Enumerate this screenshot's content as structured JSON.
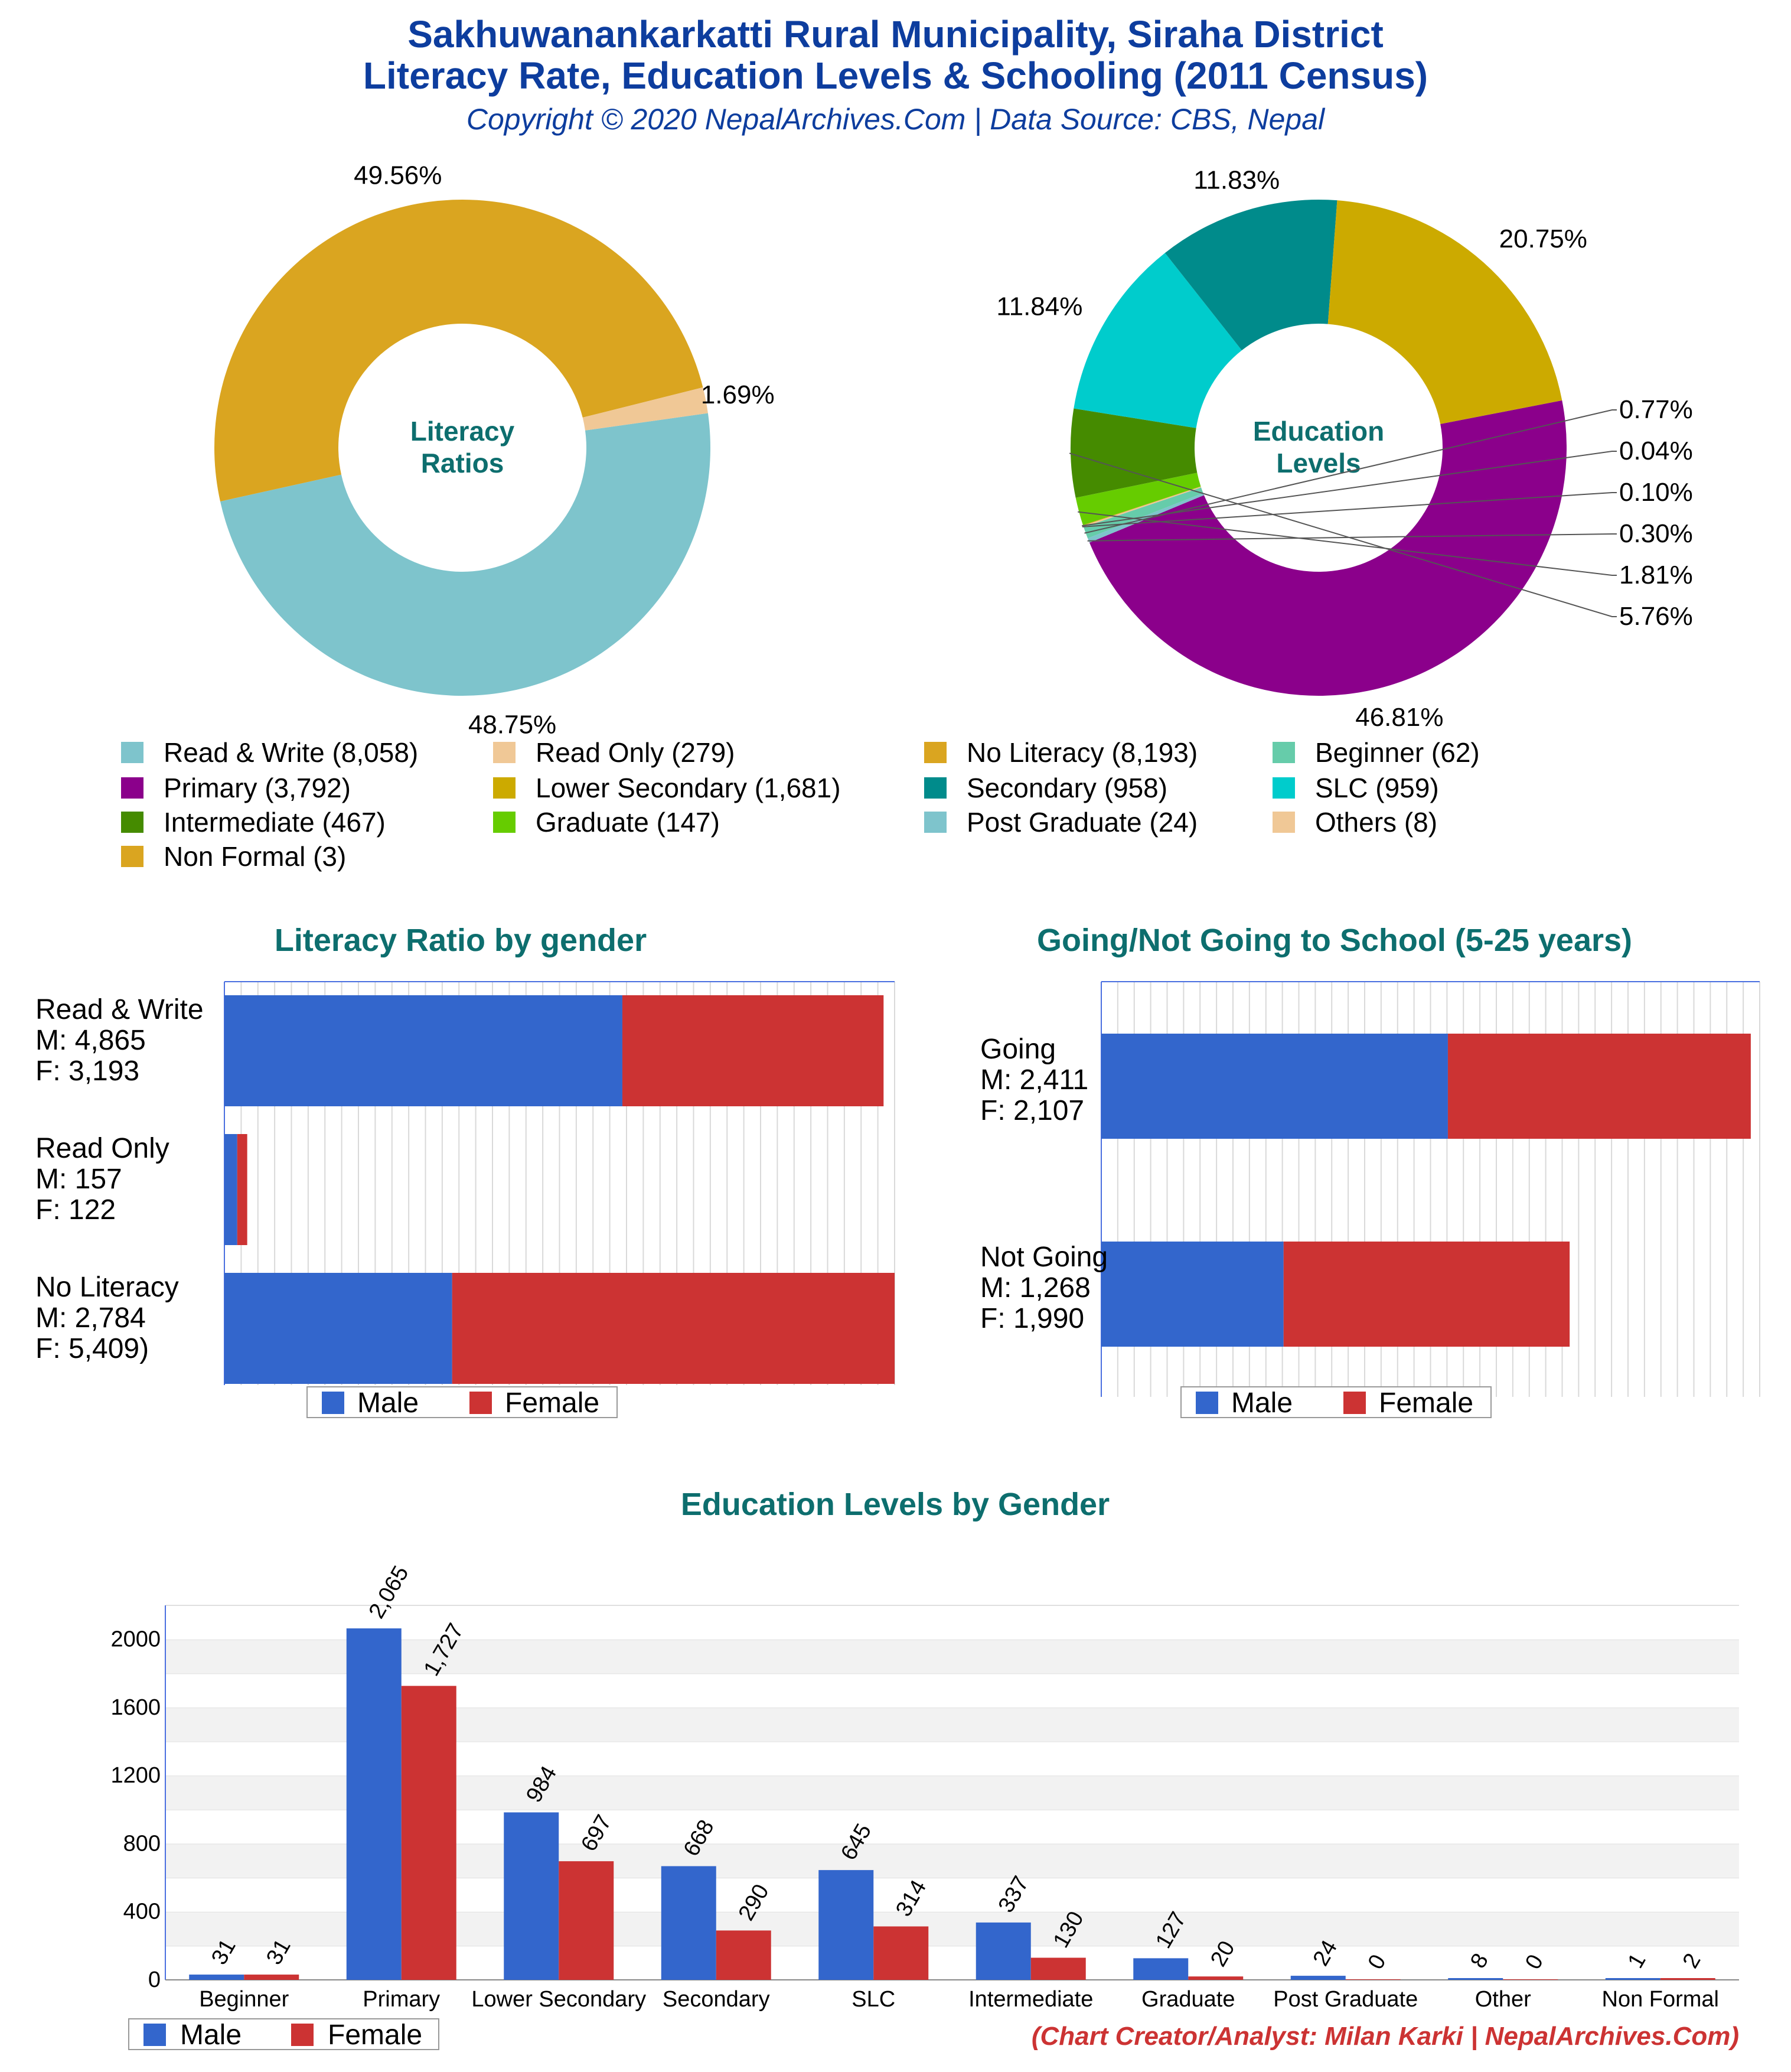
{
  "header": {
    "title_line1": "Sakhuwanankarkatti Rural Municipality, Siraha District",
    "title_line2": "Literacy Rate, Education Levels & Schooling (2011 Census)",
    "copyright": "Copyright © 2020 NepalArchives.Com | Data Source: CBS, Nepal"
  },
  "footer": {
    "credit": "(Chart Creator/Analyst: Milan Karki | NepalArchives.Com)"
  },
  "colors": {
    "male": "#3366cc",
    "female": "#cc3333",
    "section_title": "#0d6e6e",
    "header": "#0d3d9e",
    "credit": "#cc3333"
  },
  "legend": {
    "items": [
      {
        "label": "Read & Write (8,058)",
        "color": "#7ec4cc"
      },
      {
        "label": "Read Only (279)",
        "color": "#f0c896"
      },
      {
        "label": "No Literacy (8,193)",
        "color": "#daa520"
      },
      {
        "label": "Beginner (62)",
        "color": "#66ccaa"
      },
      {
        "label": "Primary (3,792)",
        "color": "#8b008b"
      },
      {
        "label": "Lower Secondary (1,681)",
        "color": "#ccaa00"
      },
      {
        "label": "Secondary (958)",
        "color": "#008b8b"
      },
      {
        "label": "SLC (959)",
        "color": "#00cccc"
      },
      {
        "label": "Intermediate (467)",
        "color": "#458b00"
      },
      {
        "label": "Graduate (147)",
        "color": "#66cc00"
      },
      {
        "label": "Post Graduate (24)",
        "color": "#7ec4cc"
      },
      {
        "label": "Others (8)",
        "color": "#f0c896"
      },
      {
        "label": "Non Formal (3)",
        "color": "#daa520"
      }
    ]
  },
  "chart_data": [
    {
      "type": "pie",
      "center_label_line1": "Literacy",
      "center_label_line2": "Ratios",
      "slices": [
        {
          "name": "Read & Write",
          "value": 8058,
          "percent": "48.75%",
          "color": "#7ec4cc"
        },
        {
          "name": "No Literacy",
          "value": 8193,
          "percent": "49.56%",
          "color": "#daa520"
        },
        {
          "name": "Read Only",
          "value": 279,
          "percent": "1.69%",
          "color": "#f0c896"
        }
      ]
    },
    {
      "type": "pie",
      "center_label_line1": "Education",
      "center_label_line2": "Levels",
      "slices": [
        {
          "name": "Primary",
          "value": 3792,
          "percent": "46.81%",
          "color": "#8b008b"
        },
        {
          "name": "Post Graduate",
          "value": 24,
          "percent": "0.30%",
          "color": "#7ec4cc"
        },
        {
          "name": "Beginner",
          "value": 62,
          "percent": "0.77%",
          "color": "#66ccaa"
        },
        {
          "name": "Others",
          "value": 8,
          "percent": "0.10%",
          "color": "#f0c896"
        },
        {
          "name": "Non Formal",
          "value": 3,
          "percent": "0.04%",
          "color": "#daa520"
        },
        {
          "name": "Graduate",
          "value": 147,
          "percent": "1.81%",
          "color": "#66cc00"
        },
        {
          "name": "Intermediate",
          "value": 467,
          "percent": "5.76%",
          "color": "#458b00"
        },
        {
          "name": "SLC",
          "value": 959,
          "percent": "11.84%",
          "color": "#00cccc"
        },
        {
          "name": "Secondary",
          "value": 958,
          "percent": "11.83%",
          "color": "#008b8b"
        },
        {
          "name": "Lower Secondary",
          "value": 1681,
          "percent": "20.75%",
          "color": "#ccaa00"
        }
      ],
      "callout_order": [
        "0.77%",
        "0.04%",
        "0.10%",
        "0.30%",
        "1.81%",
        "5.76%"
      ]
    },
    {
      "type": "bar",
      "orientation": "horizontal-stacked",
      "title": "Literacy Ratio by gender",
      "max": 8193,
      "categories": [
        {
          "label_lines": [
            "Read & Write",
            "M: 4,865",
            "F: 3,193"
          ],
          "male": 4865,
          "female": 3193
        },
        {
          "label_lines": [
            "Read Only",
            "M: 157",
            "F: 122"
          ],
          "male": 157,
          "female": 122
        },
        {
          "label_lines": [
            "No Literacy",
            "M: 2,784",
            "F: 5,409)"
          ],
          "male": 2784,
          "female": 5409
        }
      ],
      "legend": [
        "Male",
        "Female"
      ]
    },
    {
      "type": "bar",
      "orientation": "horizontal-stacked",
      "title": "Going/Not Going to School (5-25 years)",
      "max": 4580,
      "categories": [
        {
          "label_lines": [
            "Going",
            "M: 2,411",
            "F: 2,107"
          ],
          "male": 2411,
          "female": 2107
        },
        {
          "label_lines": [
            "Not Going",
            "M: 1,268",
            "F: 1,990"
          ],
          "male": 1268,
          "female": 1990
        }
      ],
      "legend": [
        "Male",
        "Female"
      ]
    },
    {
      "type": "bar",
      "title": "Education Levels by Gender",
      "categories": [
        "Beginner",
        "Primary",
        "Lower Secondary",
        "Secondary",
        "SLC",
        "Intermediate",
        "Graduate",
        "Post Graduate",
        "Other",
        "Non Formal"
      ],
      "series": [
        {
          "name": "Male",
          "values": [
            31,
            2065,
            984,
            668,
            645,
            337,
            127,
            24,
            8,
            1
          ],
          "labels": [
            "31",
            "2,065",
            "984",
            "668",
            "645",
            "337",
            "127",
            "24",
            "8",
            "1"
          ]
        },
        {
          "name": "Female",
          "values": [
            31,
            1727,
            697,
            290,
            314,
            130,
            20,
            0,
            0,
            2
          ],
          "labels": [
            "31",
            "1,727",
            "697",
            "290",
            "314",
            "130",
            "20",
            "0",
            "0",
            "2"
          ]
        }
      ],
      "ylim": [
        0,
        2200
      ],
      "yticks": [
        "0",
        "400",
        "800",
        "1200",
        "1600",
        "2000"
      ],
      "legend": [
        "Male",
        "Female"
      ]
    }
  ]
}
